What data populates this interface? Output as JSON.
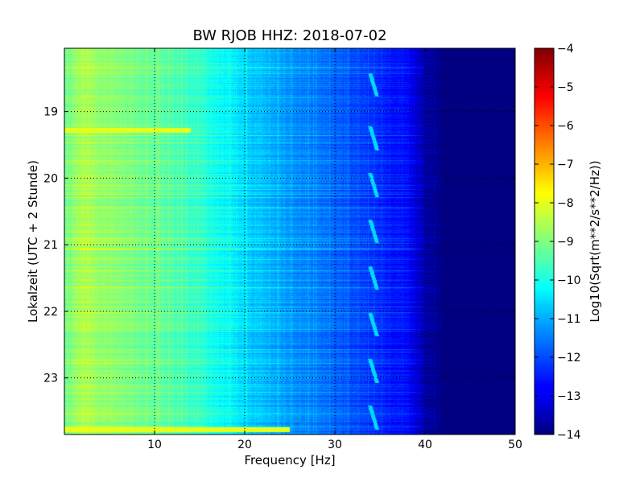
{
  "chart_data": {
    "type": "heatmap",
    "title": "BW RJOB HHZ: 2018-07-02",
    "xlabel": "Frequency [Hz]",
    "ylabel": "Lokalzeit (UTC + 2 Stunde)",
    "xlim": [
      0,
      50
    ],
    "ylim": [
      18.05,
      23.85
    ],
    "x_ticks": [
      10,
      20,
      30,
      40,
      50
    ],
    "y_ticks": [
      19,
      20,
      21,
      22,
      23
    ],
    "grid": true,
    "colorbar": {
      "label": "Log10(Sqrt(m**2/s**2/Hz))",
      "range": [
        -14,
        -4
      ],
      "ticks": [
        -4,
        -5,
        -6,
        -7,
        -8,
        -9,
        -10,
        -11,
        -12,
        -13,
        -14
      ],
      "colormap": "jet"
    },
    "spectral_profile": {
      "frequency_hz": [
        0,
        2,
        5,
        10,
        15,
        20,
        25,
        30,
        35,
        38,
        40,
        42,
        50
      ],
      "log10_amplitude": [
        -9.2,
        -8.6,
        -8.9,
        -9.3,
        -9.8,
        -10.7,
        -11.3,
        -11.8,
        -12.4,
        -12.7,
        -13.6,
        -14,
        -14
      ]
    },
    "features": [
      {
        "type": "horizontal-band",
        "time": 19.28,
        "f_range": [
          0,
          14
        ],
        "log10_amplitude": -8.0
      },
      {
        "type": "horizontal-band",
        "time": 23.78,
        "f_range": [
          0,
          25
        ],
        "log10_amplitude": -8.0
      },
      {
        "type": "recurring-tone",
        "f_center": 34.3,
        "times": [
          18.6,
          19.4,
          20.1,
          20.8,
          21.5,
          22.2,
          22.9,
          23.6
        ]
      }
    ]
  }
}
